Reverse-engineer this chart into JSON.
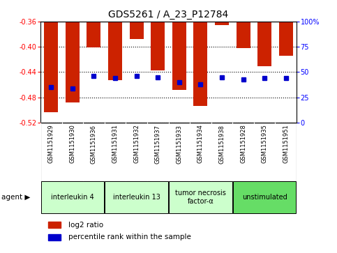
{
  "title": "GDS5261 / A_23_P12784",
  "samples": [
    "GSM1151929",
    "GSM1151930",
    "GSM1151936",
    "GSM1151931",
    "GSM1151932",
    "GSM1151937",
    "GSM1151933",
    "GSM1151934",
    "GSM1151938",
    "GSM1151928",
    "GSM1151935",
    "GSM1151951"
  ],
  "log2_ratio": [
    -0.503,
    -0.488,
    -0.401,
    -0.453,
    -0.388,
    -0.437,
    -0.468,
    -0.493,
    -0.366,
    -0.402,
    -0.431,
    -0.414
  ],
  "percentile_rank": [
    35,
    34,
    46,
    44,
    46,
    45,
    40,
    38,
    45,
    43,
    44,
    44
  ],
  "bar_color": "#cc2200",
  "dot_color": "#0000cc",
  "ylim_left": [
    -0.52,
    -0.36
  ],
  "yticks_left": [
    -0.52,
    -0.48,
    -0.44,
    -0.4,
    -0.36
  ],
  "ylim_right": [
    0,
    100
  ],
  "yticks_right": [
    0,
    25,
    50,
    75,
    100
  ],
  "ytick_labels_right": [
    "0",
    "25",
    "50",
    "75",
    "100%"
  ],
  "background_color": "#ffffff",
  "plot_bg_color": "#ffffff",
  "sample_bg_color": "#c8c8c8",
  "agent_groups": [
    {
      "label": "interleukin 4",
      "start": 0,
      "end": 2,
      "color": "#ccffcc"
    },
    {
      "label": "interleukin 13",
      "start": 3,
      "end": 5,
      "color": "#ccffcc"
    },
    {
      "label": "tumor necrosis\nfactor-α",
      "start": 6,
      "end": 8,
      "color": "#ccffcc"
    },
    {
      "label": "unstimulated",
      "start": 9,
      "end": 11,
      "color": "#66dd66"
    }
  ],
  "agent_label": "agent",
  "legend_log2": "log2 ratio",
  "legend_pct": "percentile rank within the sample"
}
